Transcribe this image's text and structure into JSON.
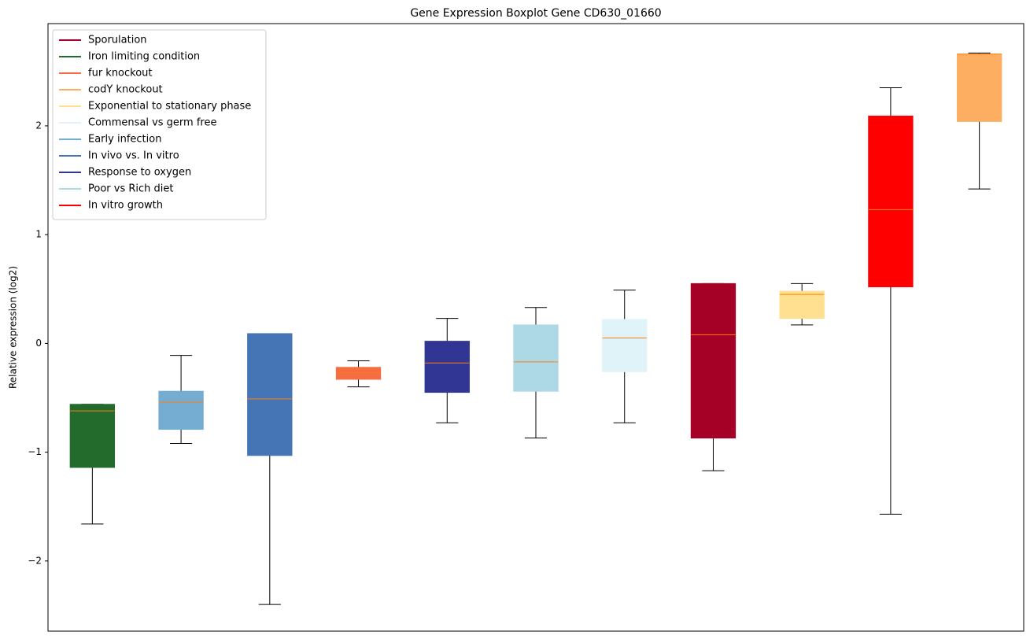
{
  "chart_data": {
    "type": "box",
    "title": "Gene Expression Boxplot Gene CD630_01660",
    "y_label": "Relative expression (log2)",
    "xlim": [
      0.5,
      11.5
    ],
    "ylim": [
      -2.645,
      2.94
    ],
    "yticks": [
      {
        "value": -2,
        "label": "−2"
      },
      {
        "value": -1,
        "label": "−1"
      },
      0,
      1,
      2
    ],
    "median_color": "#ff7f0e",
    "legend_position": "upper left",
    "series": [
      {
        "name": "Sporulation",
        "color": "#a50026",
        "x": 8,
        "values": [
          -1.17,
          -0.87,
          0.08,
          0.55,
          0.55
        ]
      },
      {
        "name": "Iron limiting condition",
        "color": "#236b2c",
        "x": 1,
        "values": [
          -1.66,
          -1.14,
          -0.62,
          -0.56,
          -0.56
        ]
      },
      {
        "name": "fur knockout",
        "color": "#f46d43",
        "x": 4,
        "values": [
          -0.4,
          -0.33,
          -0.27,
          -0.22,
          -0.16
        ]
      },
      {
        "name": "codY knockout",
        "color": "#fdae61",
        "x": 11,
        "values": [
          1.42,
          2.04,
          2.66,
          2.66,
          2.67
        ]
      },
      {
        "name": "Exponential to stationary phase",
        "color": "#fee090",
        "x": 9,
        "values": [
          0.17,
          0.23,
          0.45,
          0.48,
          0.55
        ]
      },
      {
        "name": "Commensal vs germ free",
        "color": "#e0f3f8",
        "x": 7,
        "values": [
          -0.73,
          -0.26,
          0.05,
          0.22,
          0.49
        ]
      },
      {
        "name": "Early infection",
        "color": "#74add1",
        "x": 2,
        "values": [
          -0.92,
          -0.79,
          -0.54,
          -0.44,
          -0.11
        ]
      },
      {
        "name": "In vivo vs. In vitro",
        "color": "#4575b4",
        "x": 3,
        "values": [
          -2.4,
          -1.03,
          -0.51,
          0.09,
          0.09
        ]
      },
      {
        "name": "Response to oxygen",
        "color": "#313695",
        "x": 5,
        "values": [
          -0.73,
          -0.45,
          -0.18,
          0.02,
          0.23
        ]
      },
      {
        "name": "Poor vs Rich diet",
        "color": "#add8e6",
        "x": 6,
        "values": [
          -0.87,
          -0.44,
          -0.17,
          0.17,
          0.33
        ]
      },
      {
        "name": "In vitro growth",
        "color": "#ff0000",
        "x": 10,
        "values": [
          -1.57,
          0.52,
          1.23,
          2.09,
          2.35
        ]
      }
    ]
  }
}
